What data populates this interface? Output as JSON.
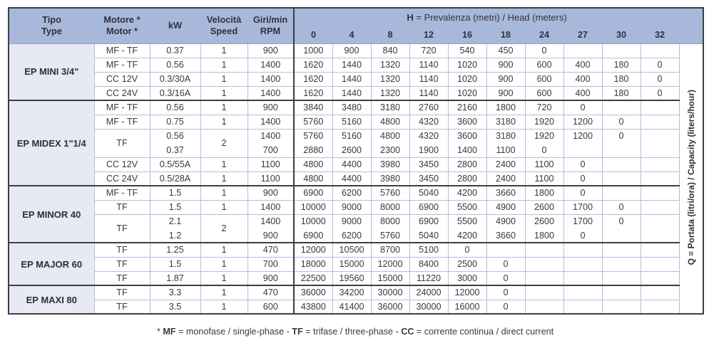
{
  "colors": {
    "header_blue": "#a8b8da",
    "type_column_bg": "#e7e9f4",
    "grid_line": "#b2bedd",
    "dark_border": "#3e3e42",
    "text": "#3a3a3e"
  },
  "table": {
    "columns": [
      {
        "line1": "Tipo",
        "line2": "Type"
      },
      {
        "line1": "Motore *",
        "line2": "Motor *"
      },
      {
        "line1": "kW",
        "line2": ""
      },
      {
        "line1": "Velocità",
        "line2": "Speed"
      },
      {
        "line1": "Giri/min",
        "line2": "RPM"
      }
    ],
    "head_title": {
      "bold": "H",
      "rest": " = Prevalenza (metri) / Head (meters)"
    },
    "head_values": [
      "0",
      "4",
      "8",
      "12",
      "16",
      "18",
      "24",
      "27",
      "30",
      "32"
    ],
    "capacity_label": "Q = Portata (litri/ora) / Capacity (liters/hour)",
    "sections": [
      {
        "name": "EP MINI 3/4\"",
        "rows": [
          {
            "motor": "MF - TF",
            "kw": "0.37",
            "speed": "1",
            "rpm": "900",
            "q": [
              "1000",
              "900",
              "840",
              "720",
              "540",
              "450",
              "0",
              "",
              "",
              ""
            ]
          },
          {
            "motor": "MF - TF",
            "kw": "0.56",
            "speed": "1",
            "rpm": "1400",
            "q": [
              "1620",
              "1440",
              "1320",
              "1140",
              "1020",
              "900",
              "600",
              "400",
              "180",
              "0"
            ]
          },
          {
            "motor": "CC 12V",
            "kw": "0.3/30A",
            "speed": "1",
            "rpm": "1400",
            "q": [
              "1620",
              "1440",
              "1320",
              "1140",
              "1020",
              "900",
              "600",
              "400",
              "180",
              "0"
            ]
          },
          {
            "motor": "CC 24V",
            "kw": "0.3/16A",
            "speed": "1",
            "rpm": "1400",
            "q": [
              "1620",
              "1440",
              "1320",
              "1140",
              "1020",
              "900",
              "600",
              "400",
              "180",
              "0"
            ]
          }
        ]
      },
      {
        "name": "EP MIDEX 1\"1/4",
        "rows": [
          {
            "motor": "MF - TF",
            "kw": "0.56",
            "speed": "1",
            "rpm": "900",
            "q": [
              "3840",
              "3480",
              "3180",
              "2760",
              "2160",
              "1800",
              "720",
              "0",
              "",
              ""
            ]
          },
          {
            "motor": "MF - TF",
            "kw": "0.75",
            "speed": "1",
            "rpm": "1400",
            "q": [
              "5760",
              "5160",
              "4800",
              "4320",
              "3600",
              "3180",
              "1920",
              "1200",
              "0",
              ""
            ]
          },
          {
            "motor": "TF",
            "kw": "0.56",
            "speed": "2",
            "rpm": "1400",
            "q": [
              "5760",
              "5160",
              "4800",
              "4320",
              "3600",
              "3180",
              "1920",
              "1200",
              "0",
              ""
            ],
            "merge": "top"
          },
          {
            "kw": "0.37",
            "rpm": "700",
            "q": [
              "2880",
              "2600",
              "2300",
              "1900",
              "1400",
              "1100",
              "0",
              "",
              "",
              ""
            ],
            "merge": "bottom"
          },
          {
            "motor": "CC 12V",
            "kw": "0.5/55A",
            "speed": "1",
            "rpm": "1100",
            "q": [
              "4800",
              "4400",
              "3980",
              "3450",
              "2800",
              "2400",
              "1100",
              "0",
              "",
              ""
            ]
          },
          {
            "motor": "CC 24V",
            "kw": "0.5/28A",
            "speed": "1",
            "rpm": "1100",
            "q": [
              "4800",
              "4400",
              "3980",
              "3450",
              "2800",
              "2400",
              "1100",
              "0",
              "",
              ""
            ]
          }
        ]
      },
      {
        "name": "EP MINOR 40",
        "rows": [
          {
            "motor": "MF - TF",
            "kw": "1.5",
            "speed": "1",
            "rpm": "900",
            "q": [
              "6900",
              "6200",
              "5760",
              "5040",
              "4200",
              "3660",
              "1800",
              "0",
              "",
              ""
            ]
          },
          {
            "motor": "TF",
            "kw": "1.5",
            "speed": "1",
            "rpm": "1400",
            "q": [
              "10000",
              "9000",
              "8000",
              "6900",
              "5500",
              "4900",
              "2600",
              "1700",
              "0",
              ""
            ]
          },
          {
            "motor": "TF",
            "kw": "2.1",
            "speed": "2",
            "rpm": "1400",
            "q": [
              "10000",
              "9000",
              "8000",
              "6900",
              "5500",
              "4900",
              "2600",
              "1700",
              "0",
              ""
            ],
            "merge": "top"
          },
          {
            "kw": "1.2",
            "rpm": "900",
            "q": [
              "6900",
              "6200",
              "5760",
              "5040",
              "4200",
              "3660",
              "1800",
              "0",
              "",
              ""
            ],
            "merge": "bottom"
          }
        ]
      },
      {
        "name": "EP MAJOR 60",
        "rows": [
          {
            "motor": "TF",
            "kw": "1.25",
            "speed": "1",
            "rpm": "470",
            "q": [
              "12000",
              "10500",
              "8700",
              "5100",
              "0",
              "",
              "",
              "",
              "",
              ""
            ]
          },
          {
            "motor": "TF",
            "kw": "1.5",
            "speed": "1",
            "rpm": "700",
            "q": [
              "18000",
              "15000",
              "12000",
              "8400",
              "2500",
              "0",
              "",
              "",
              "",
              ""
            ]
          },
          {
            "motor": "TF",
            "kw": "1.87",
            "speed": "1",
            "rpm": "900",
            "q": [
              "22500",
              "19560",
              "15000",
              "11220",
              "3000",
              "0",
              "",
              "",
              "",
              ""
            ]
          }
        ]
      },
      {
        "name": "EP MAXI 80",
        "rows": [
          {
            "motor": "TF",
            "kw": "3.3",
            "speed": "1",
            "rpm": "470",
            "q": [
              "36000",
              "34200",
              "30000",
              "24000",
              "12000",
              "0",
              "",
              "",
              "",
              ""
            ]
          },
          {
            "motor": "TF",
            "kw": "3.5",
            "speed": "1",
            "rpm": "600",
            "q": [
              "43800",
              "41400",
              "36000",
              "30000",
              "16000",
              "0",
              "",
              "",
              "",
              ""
            ]
          }
        ]
      }
    ]
  },
  "footnote": {
    "segments": [
      {
        "text": "* ",
        "bold": false
      },
      {
        "text": "MF",
        "bold": true
      },
      {
        "text": " = monofase / single-phase - ",
        "bold": false
      },
      {
        "text": "TF",
        "bold": true
      },
      {
        "text": " = trifase / three-phase - ",
        "bold": false
      },
      {
        "text": "CC",
        "bold": true
      },
      {
        "text": " = corrente continua / direct current",
        "bold": false
      }
    ]
  }
}
